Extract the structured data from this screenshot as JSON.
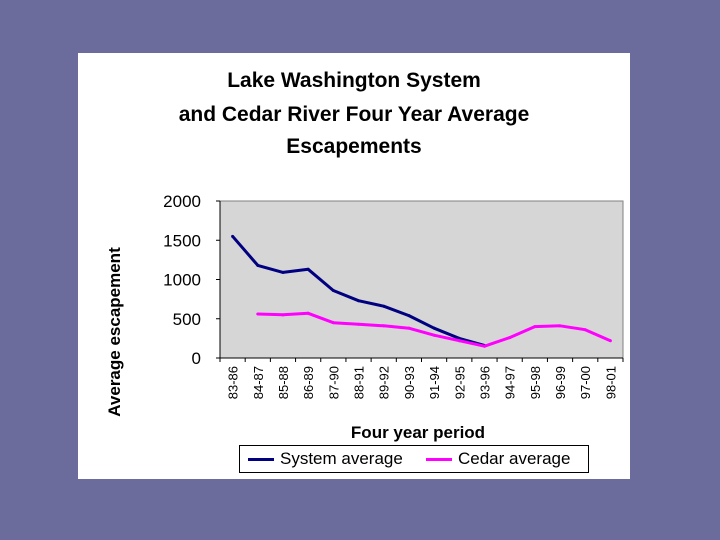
{
  "chart_data": {
    "type": "line",
    "title_lines": [
      "Lake Washington System",
      "and Cedar River Four Year Average",
      "Escapements"
    ],
    "xlabel": "Four year period",
    "ylabel": "Average escapement",
    "categories": [
      "83-86",
      "84-87",
      "85-88",
      "86-89",
      "87-90",
      "88-91",
      "89-92",
      "90-93",
      "91-94",
      "92-95",
      "93-96",
      "94-97",
      "95-98",
      "96-99",
      "97-00",
      "98-01"
    ],
    "ylim": [
      0,
      2000
    ],
    "yticks": [
      "0",
      "500",
      "1000",
      "1500",
      "2000"
    ],
    "ytick_values": [
      0,
      500,
      1000,
      1500,
      2000
    ],
    "grid": false,
    "legend_position": "bottom",
    "series": [
      {
        "name": "System average",
        "color": "#000080",
        "values": [
          1550,
          1180,
          1090,
          1130,
          860,
          730,
          660,
          540,
          380,
          250,
          160,
          null,
          null,
          null,
          null,
          null
        ]
      },
      {
        "name": "Cedar average",
        "color": "#ff00ff",
        "values": [
          null,
          560,
          550,
          570,
          450,
          430,
          410,
          380,
          290,
          220,
          150,
          260,
          400,
          410,
          360,
          220
        ]
      }
    ]
  }
}
